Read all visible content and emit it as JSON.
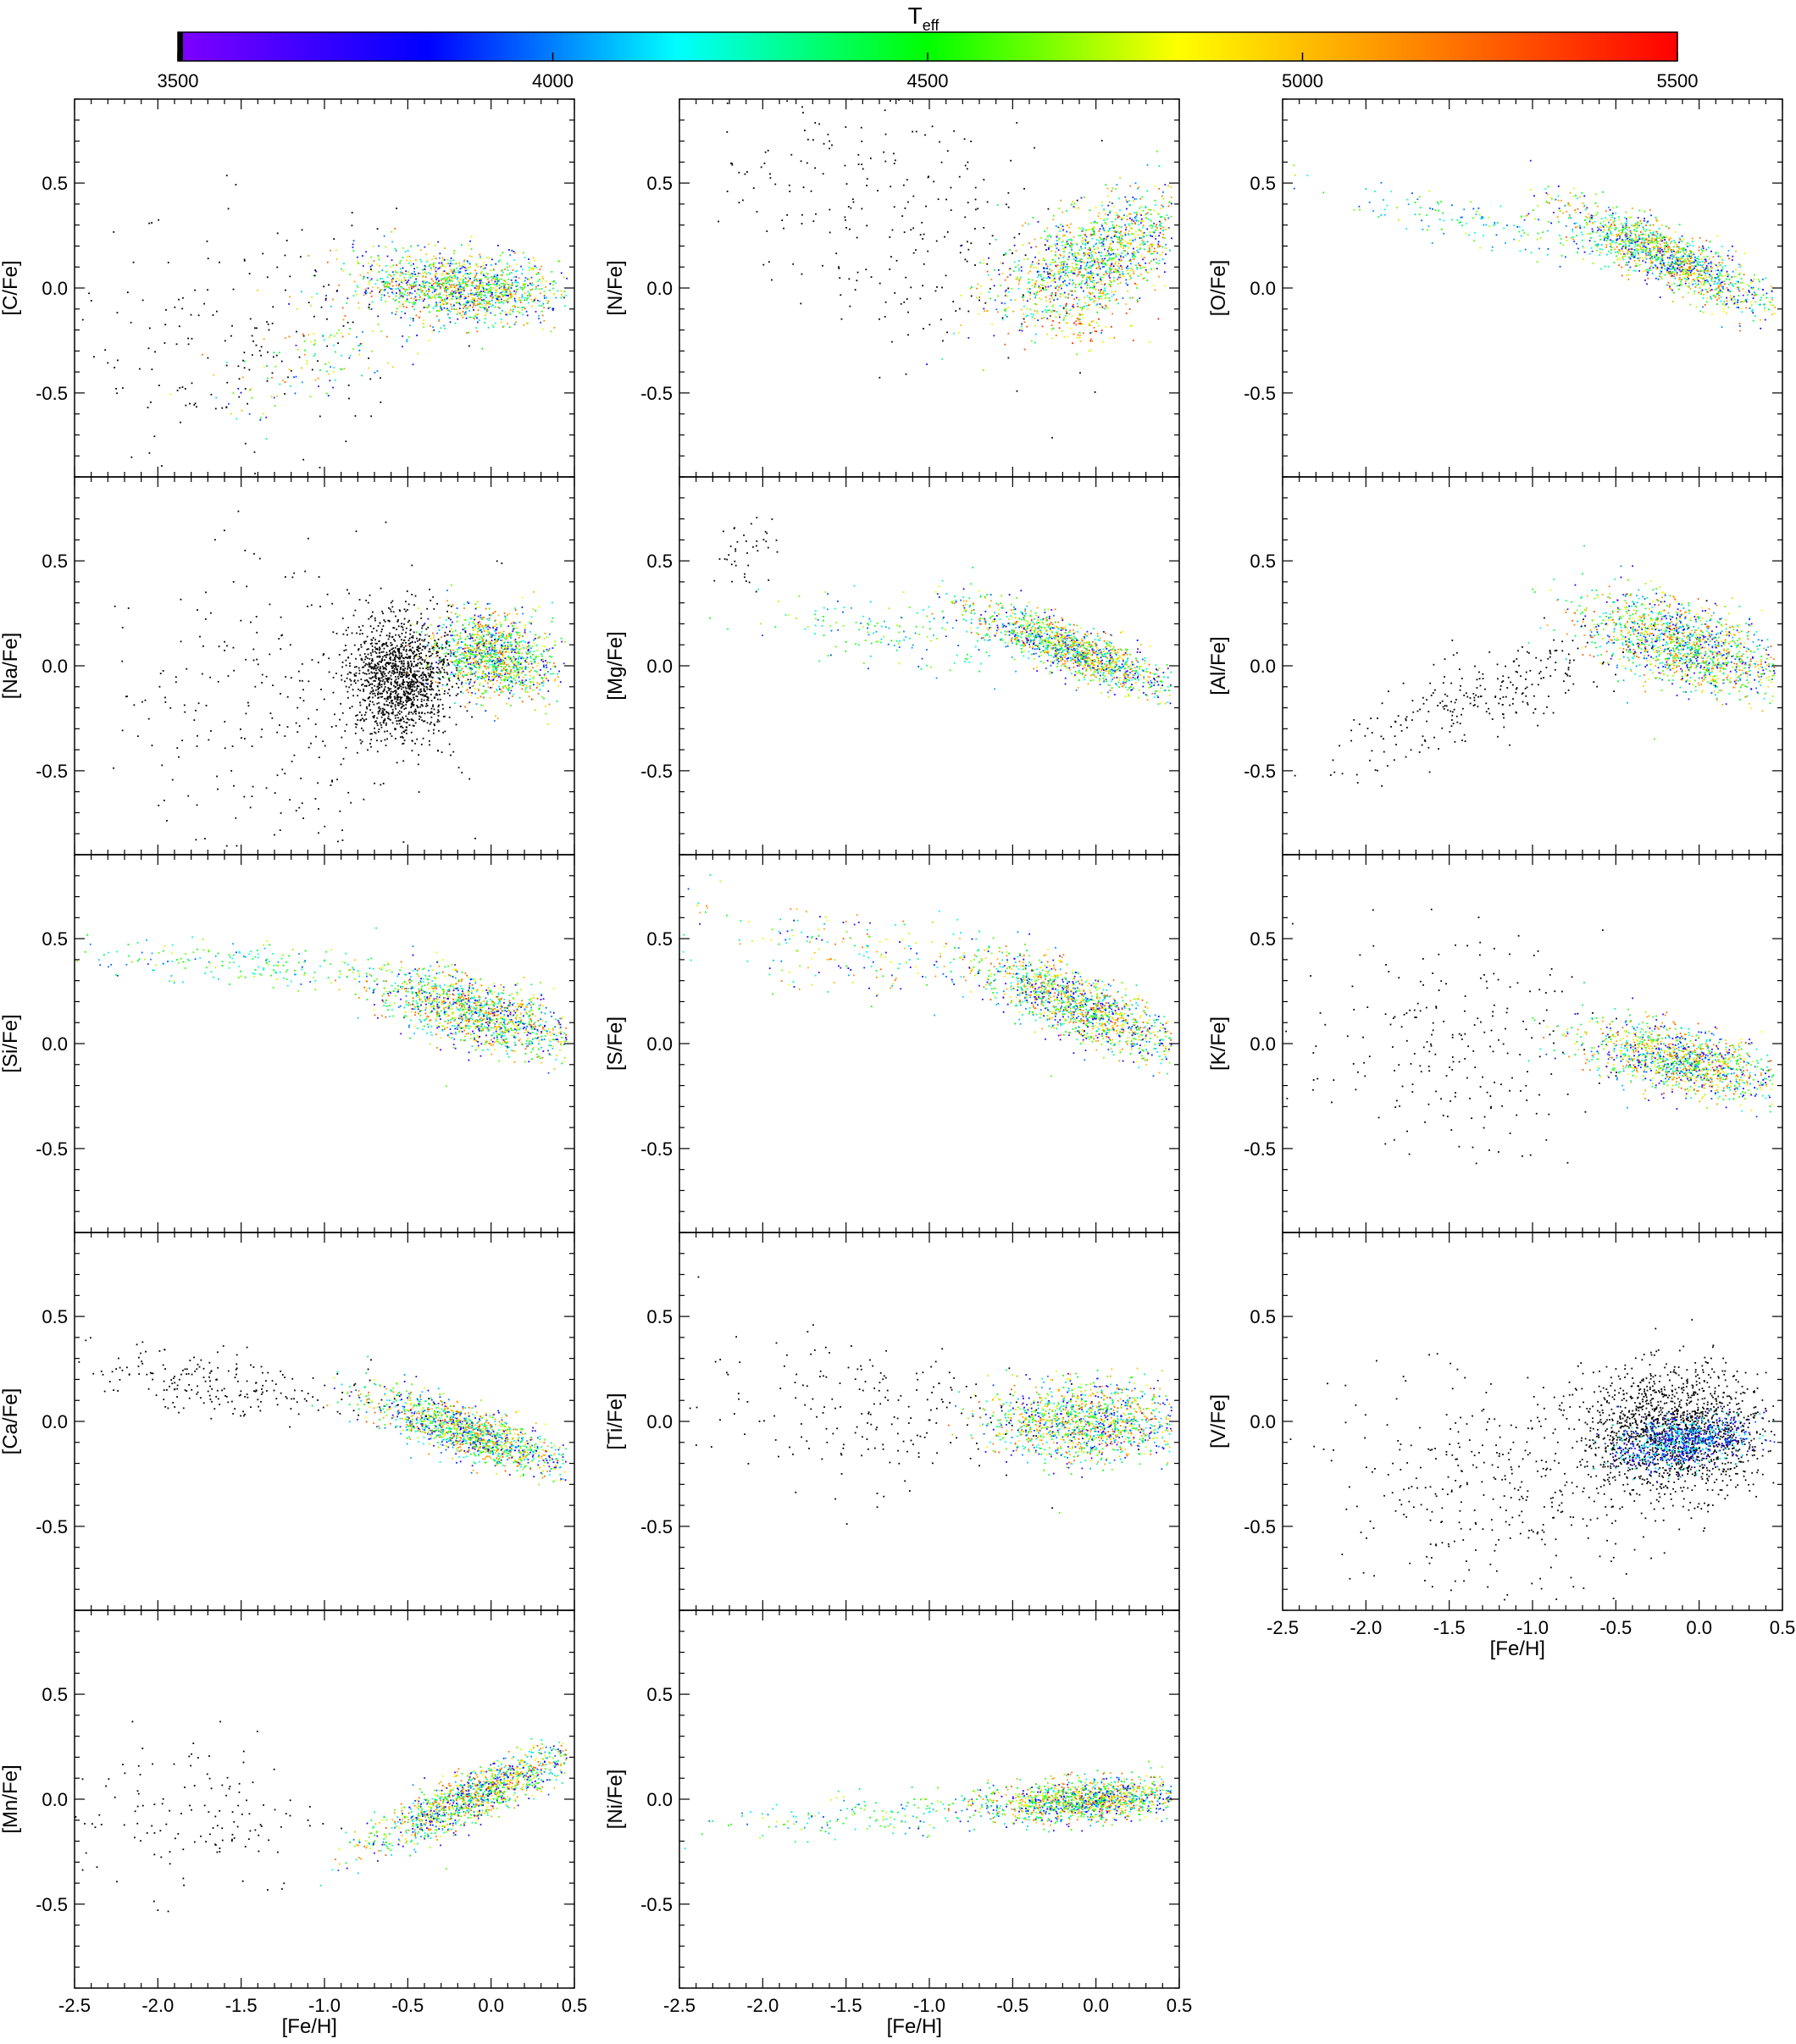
{
  "colorbar": {
    "title_main": "T",
    "title_sub": "eff",
    "ticks": [
      3500,
      4000,
      4500,
      5000,
      5500
    ],
    "range": [
      3500,
      5500
    ],
    "colors": [
      "#8000ff",
      "#0000ff",
      "#00ffff",
      "#00ff00",
      "#ffff00",
      "#ff8000",
      "#ff0000"
    ]
  },
  "chart_data": {
    "type": "scatter",
    "xlabel": "[Fe/H]",
    "xlim": [
      -2.5,
      0.5
    ],
    "ylim": [
      -0.9,
      0.9
    ],
    "xticks": [
      "-2.5",
      "-2.0",
      "-1.5",
      "-1.0",
      "-0.5",
      "0.0",
      "0.5"
    ],
    "yticks": [
      "-0.5",
      "0.0",
      "0.5"
    ],
    "color_variable": "T",
    "panels": [
      {
        "ylabel": "[C/Fe]",
        "clouds": [
          {
            "cx": -0.2,
            "cy": 0.0,
            "sx": 0.3,
            "sy": 0.08,
            "n": 1400,
            "temp": "mixed",
            "slope": -0.05
          },
          {
            "cx": -1.0,
            "cy": -0.35,
            "sx": 0.35,
            "sy": 0.12,
            "n": 140,
            "temp": "mixed",
            "slope": 0.3
          },
          {
            "cx": -1.5,
            "cy": -0.25,
            "sx": 0.5,
            "sy": 0.3,
            "n": 180,
            "temp": "black",
            "slope": 0
          }
        ]
      },
      {
        "ylabel": "[N/Fe]",
        "clouds": [
          {
            "cx": 0.0,
            "cy": 0.15,
            "sx": 0.3,
            "sy": 0.12,
            "n": 1400,
            "temp": "mixed",
            "slope": 0.3
          },
          {
            "cx": -1.2,
            "cy": 0.35,
            "sx": 0.5,
            "sy": 0.3,
            "n": 260,
            "temp": "black",
            "slope": -0.2
          },
          {
            "cx": -0.1,
            "cy": -0.15,
            "sx": 0.15,
            "sy": 0.1,
            "n": 120,
            "temp": "warm",
            "slope": 0
          }
        ]
      },
      {
        "ylabel": "[O/Fe]",
        "clouds": [
          {
            "cx": -0.2,
            "cy": 0.15,
            "sx": 0.3,
            "sy": 0.07,
            "n": 1400,
            "temp": "mixed",
            "slope": -0.35
          },
          {
            "cx": -1.3,
            "cy": 0.3,
            "sx": 0.5,
            "sy": 0.06,
            "n": 160,
            "temp": "cool-mid",
            "slope": -0.15
          }
        ]
      },
      {
        "ylabel": "[Na/Fe]",
        "clouds": [
          {
            "cx": 0.0,
            "cy": 0.05,
            "sx": 0.18,
            "sy": 0.1,
            "n": 1300,
            "temp": "mixed",
            "slope": -0.1
          },
          {
            "cx": -0.55,
            "cy": -0.05,
            "sx": 0.15,
            "sy": 0.14,
            "n": 1300,
            "temp": "black",
            "slope": 0
          },
          {
            "cx": -1.2,
            "cy": -0.2,
            "sx": 0.5,
            "sy": 0.35,
            "n": 300,
            "temp": "black",
            "slope": 0
          }
        ]
      },
      {
        "ylabel": "[Mg/Fe]",
        "clouds": [
          {
            "cx": -0.15,
            "cy": 0.08,
            "sx": 0.3,
            "sy": 0.06,
            "n": 1400,
            "temp": "mixed",
            "slope": -0.3
          },
          {
            "cx": -1.2,
            "cy": 0.15,
            "sx": 0.4,
            "sy": 0.08,
            "n": 160,
            "temp": "cool-mid",
            "slope": -0.1
          },
          {
            "cx": -2.1,
            "cy": 0.55,
            "sx": 0.1,
            "sy": 0.08,
            "n": 40,
            "temp": "black",
            "slope": 0
          }
        ]
      },
      {
        "ylabel": "[Al/Fe]",
        "clouds": [
          {
            "cx": -0.1,
            "cy": 0.1,
            "sx": 0.3,
            "sy": 0.1,
            "n": 1500,
            "temp": "mixed",
            "slope": -0.2
          },
          {
            "cx": -1.3,
            "cy": -0.15,
            "sx": 0.45,
            "sy": 0.1,
            "n": 260,
            "temp": "black",
            "slope": 0.3
          }
        ]
      },
      {
        "ylabel": "[Si/Fe]",
        "clouds": [
          {
            "cx": -0.1,
            "cy": 0.15,
            "sx": 0.3,
            "sy": 0.08,
            "n": 1400,
            "temp": "mixed",
            "slope": -0.2
          },
          {
            "cx": -1.5,
            "cy": 0.38,
            "sx": 0.5,
            "sy": 0.05,
            "n": 200,
            "temp": "cool-mid",
            "slope": -0.05
          }
        ]
      },
      {
        "ylabel": "[S/Fe]",
        "clouds": [
          {
            "cx": -0.1,
            "cy": 0.18,
            "sx": 0.3,
            "sy": 0.08,
            "n": 1400,
            "temp": "mixed",
            "slope": -0.3
          },
          {
            "cx": -1.5,
            "cy": 0.45,
            "sx": 0.5,
            "sy": 0.1,
            "n": 200,
            "temp": "mixed",
            "slope": -0.1
          }
        ]
      },
      {
        "ylabel": "[K/Fe]",
        "clouds": [
          {
            "cx": -0.1,
            "cy": -0.08,
            "sx": 0.3,
            "sy": 0.08,
            "n": 1300,
            "temp": "mixed",
            "slope": -0.15
          },
          {
            "cx": -1.5,
            "cy": 0.0,
            "sx": 0.45,
            "sy": 0.25,
            "n": 220,
            "temp": "black",
            "slope": 0
          }
        ]
      },
      {
        "ylabel": "[Ca/Fe]",
        "clouds": [
          {
            "cx": -0.15,
            "cy": -0.05,
            "sx": 0.3,
            "sy": 0.06,
            "n": 1400,
            "temp": "mixed",
            "slope": -0.25
          },
          {
            "cx": -1.6,
            "cy": 0.18,
            "sx": 0.45,
            "sy": 0.08,
            "n": 220,
            "temp": "black",
            "slope": -0.05
          }
        ]
      },
      {
        "ylabel": "[Ti/Fe]",
        "clouds": [
          {
            "cx": -0.05,
            "cy": 0.0,
            "sx": 0.3,
            "sy": 0.09,
            "n": 1400,
            "temp": "mixed",
            "slope": 0
          },
          {
            "cx": -1.4,
            "cy": 0.05,
            "sx": 0.5,
            "sy": 0.18,
            "n": 200,
            "temp": "black",
            "slope": 0
          }
        ]
      },
      {
        "ylabel": "[V/Fe]",
        "clouds": [
          {
            "cx": -0.15,
            "cy": -0.05,
            "sx": 0.28,
            "sy": 0.15,
            "n": 1600,
            "temp": "black",
            "slope": 0
          },
          {
            "cx": -0.1,
            "cy": -0.1,
            "sx": 0.2,
            "sy": 0.06,
            "n": 700,
            "temp": "cool",
            "slope": 0.1
          },
          {
            "cx": -1.2,
            "cy": -0.3,
            "sx": 0.5,
            "sy": 0.25,
            "n": 350,
            "temp": "black",
            "slope": 0
          }
        ]
      },
      {
        "ylabel": "[Mn/Fe]",
        "clouds": [
          {
            "cx": -0.1,
            "cy": 0.02,
            "sx": 0.3,
            "sy": 0.06,
            "n": 1400,
            "temp": "mixed",
            "slope": 0.35
          },
          {
            "cx": -1.8,
            "cy": -0.05,
            "sx": 0.4,
            "sy": 0.2,
            "n": 140,
            "temp": "black",
            "slope": 0
          }
        ]
      },
      {
        "ylabel": "[Ni/Fe]",
        "clouds": [
          {
            "cx": -0.05,
            "cy": 0.0,
            "sx": 0.3,
            "sy": 0.05,
            "n": 1400,
            "temp": "mixed",
            "slope": 0.05
          },
          {
            "cx": -1.3,
            "cy": -0.07,
            "sx": 0.5,
            "sy": 0.05,
            "n": 180,
            "temp": "cool-mid",
            "slope": 0.05
          }
        ]
      }
    ]
  }
}
